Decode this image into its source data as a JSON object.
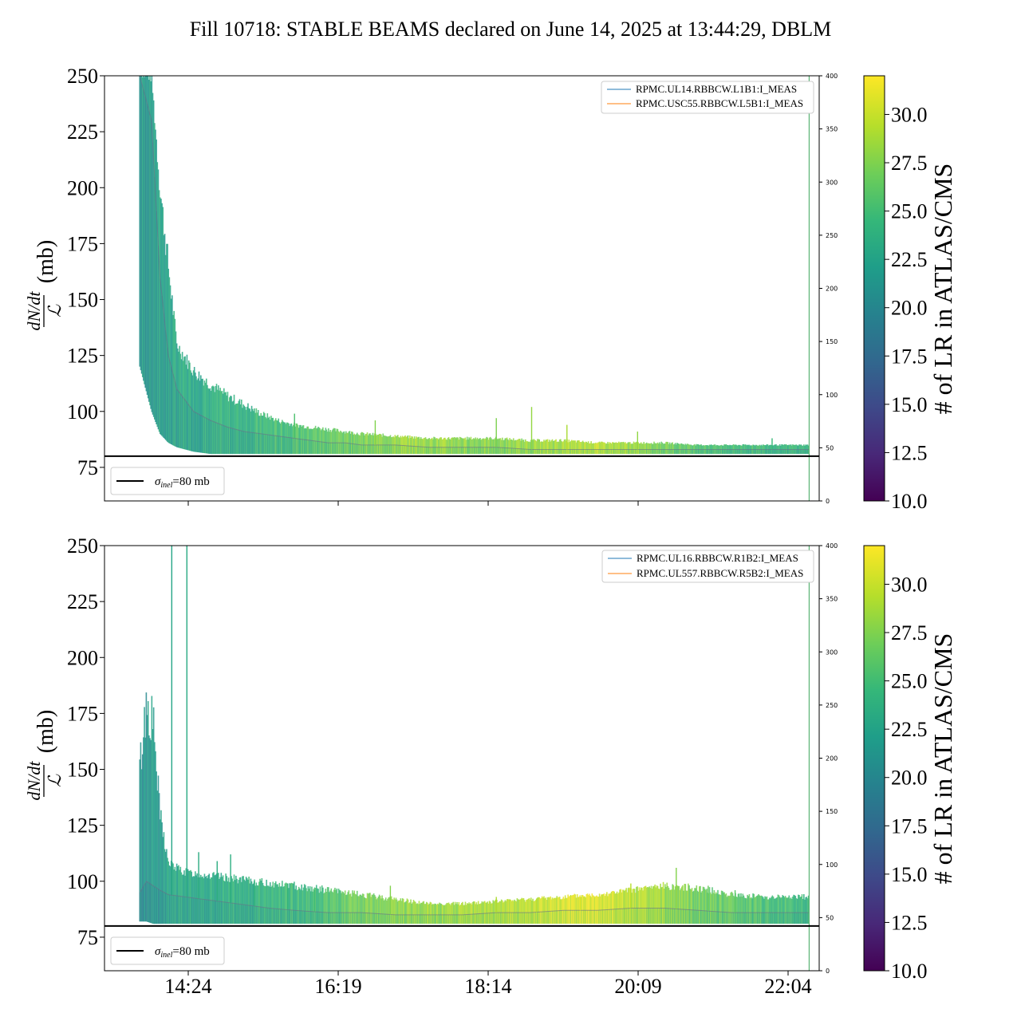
{
  "title": "Fill 10718: STABLE BEAMS declared on June 14, 2025 at 13:44:29, DBLM",
  "colors": {
    "reference_line": "#000000",
    "legend_series_1": "#1f77b4",
    "legend_series_2": "#ff7f0e",
    "viridis": [
      "#440154",
      "#482878",
      "#3e4989",
      "#31688e",
      "#26828e",
      "#1f9e89",
      "#35b779",
      "#6ece58",
      "#b5de2b",
      "#fde725"
    ]
  },
  "chart_data": [
    {
      "type": "line",
      "panel": "top",
      "title": "",
      "xlabel": "",
      "ylabel": "dN/dt / ℒ (mb)",
      "ylabel_fraction_numerator": "dN/dt",
      "ylabel_fraction_denominator": "ℒ",
      "ylabel_unit": "(mb)",
      "ylim": [
        60,
        250
      ],
      "y_ticks": [
        "75",
        "100",
        "125",
        "150",
        "175",
        "200",
        "225",
        "250"
      ],
      "y_tick_values": [
        75,
        100,
        125,
        150,
        175,
        200,
        225,
        250
      ],
      "secondary_ylim": [
        0,
        400
      ],
      "secondary_y_ticks": [
        "0",
        "50",
        "100",
        "150",
        "200",
        "250",
        "300",
        "350",
        "400"
      ],
      "secondary_y_tick_values": [
        0,
        50,
        100,
        150,
        200,
        250,
        300,
        350,
        400
      ],
      "x_axis_unit": "minutes after 13:00",
      "xlim": [
        -13,
        412
      ],
      "x_ticks_shown": false,
      "x_tick_values": [
        84,
        179,
        274,
        369
      ],
      "grid": false,
      "legend_position": "top-right",
      "legend": [
        "RPMC.UL14.RBBCW.L1B1:I_MEAS",
        "RPMC.USC55.RBBCW.L5B1:I_MEAS"
      ],
      "reference_line": {
        "y": 80,
        "label": "σinel=80 mb",
        "label_main": "σ",
        "label_sub": "inel",
        "label_rest": "=80 mb"
      },
      "vertical_marker_x": 406,
      "series": [
        {
          "name": "envelope-upper",
          "x": [
            8,
            15,
            20,
            25,
            30,
            40,
            50,
            60,
            70,
            80,
            90,
            100,
            110,
            120,
            130,
            140,
            160,
            180,
            200,
            220,
            240,
            260,
            280,
            300,
            320,
            340,
            360,
            380,
            400,
            406
          ],
          "y": [
            250,
            250,
            200,
            165,
            130,
            118,
            112,
            107,
            103,
            99,
            96,
            94,
            93,
            92,
            91,
            90,
            89,
            88,
            88,
            88,
            87,
            87,
            86,
            86,
            86,
            85,
            85,
            85,
            85,
            85
          ]
        },
        {
          "name": "median",
          "x": [
            8,
            15,
            20,
            25,
            30,
            40,
            50,
            60,
            70,
            80,
            90,
            100,
            110,
            120,
            130,
            140,
            160,
            180,
            200,
            220,
            240,
            260,
            280,
            300,
            320,
            340,
            360,
            380,
            400,
            406
          ],
          "y": [
            250,
            230,
            160,
            125,
            110,
            100,
            96,
            93,
            91,
            90,
            89,
            88,
            87,
            86,
            86,
            85,
            85,
            84,
            84,
            84,
            83,
            83,
            83,
            83,
            83,
            83,
            83,
            83,
            83,
            83
          ]
        },
        {
          "name": "envelope-lower",
          "x": [
            8,
            15,
            20,
            25,
            30,
            40,
            50,
            60,
            70,
            80,
            90,
            100,
            110,
            120,
            130,
            140,
            160,
            180,
            200,
            220,
            240,
            260,
            280,
            300,
            320,
            340,
            360,
            380,
            400,
            406
          ],
          "y": [
            120,
            100,
            90,
            86,
            84,
            82,
            81,
            81,
            81,
            81,
            81,
            81,
            81,
            81,
            81,
            81,
            81,
            81,
            81,
            81,
            81,
            81,
            81,
            81,
            81,
            81,
            81,
            81,
            81,
            81
          ]
        }
      ],
      "spikes": [
        [
          100,
          99
        ],
        [
          148,
          96
        ],
        [
          220,
          97
        ],
        [
          241,
          102
        ],
        [
          262,
          94
        ],
        [
          304,
          91
        ],
        [
          384,
          88
        ]
      ],
      "band_color_steps": [
        [
          8,
          0.55
        ],
        [
          35,
          0.6
        ],
        [
          75,
          0.65
        ],
        [
          120,
          0.75
        ],
        [
          170,
          0.85
        ],
        [
          220,
          0.8
        ],
        [
          280,
          0.9
        ],
        [
          350,
          0.7
        ],
        [
          406,
          0.65
        ]
      ]
    },
    {
      "type": "line",
      "panel": "bottom",
      "title": "",
      "xlabel": "",
      "ylabel": "dN/dt / ℒ (mb)",
      "ylabel_fraction_numerator": "dN/dt",
      "ylabel_fraction_denominator": "ℒ",
      "ylabel_unit": "(mb)",
      "ylim": [
        60,
        250
      ],
      "y_ticks": [
        "75",
        "100",
        "125",
        "150",
        "175",
        "200",
        "225",
        "250"
      ],
      "y_tick_values": [
        75,
        100,
        125,
        150,
        175,
        200,
        225,
        250
      ],
      "secondary_ylim": [
        0,
        400
      ],
      "secondary_y_ticks": [
        "0",
        "50",
        "100",
        "150",
        "200",
        "250",
        "300",
        "350",
        "400"
      ],
      "secondary_y_tick_values": [
        0,
        50,
        100,
        150,
        200,
        250,
        300,
        350,
        400
      ],
      "x_axis_unit": "minutes after 13:00",
      "xlim": [
        -13,
        412
      ],
      "x_ticks": [
        "14:24",
        "16:19",
        "18:14",
        "20:09",
        "22:04"
      ],
      "x_tick_values": [
        84,
        199,
        314,
        429,
        544
      ],
      "grid": false,
      "legend_position": "top-right",
      "legend": [
        "RPMC.UL16.RBBCW.R1B2:I_MEAS",
        "RPMC.UL557.RBBCW.R5B2:I_MEAS"
      ],
      "reference_line": {
        "y": 80,
        "label": "σinel=80 mb",
        "label_main": "σ",
        "label_sub": "inel",
        "label_rest": "=80 mb"
      },
      "vertical_marker_x": 406,
      "series": [
        {
          "name": "envelope-upper",
          "x": [
            8,
            12,
            16,
            20,
            25,
            35,
            45,
            55,
            65,
            75,
            85,
            100,
            120,
            140,
            160,
            180,
            200,
            220,
            240,
            260,
            280,
            300,
            320,
            340,
            360,
            380,
            400,
            406
          ],
          "y": [
            150,
            180,
            170,
            130,
            108,
            104,
            103,
            102,
            101,
            100,
            99,
            98,
            96,
            94,
            92,
            90,
            90,
            91,
            92,
            93,
            94,
            96,
            98,
            97,
            94,
            93,
            93,
            93
          ]
        },
        {
          "name": "median",
          "x": [
            8,
            12,
            16,
            20,
            25,
            35,
            45,
            55,
            65,
            75,
            85,
            100,
            120,
            140,
            160,
            180,
            200,
            220,
            240,
            260,
            280,
            300,
            320,
            340,
            360,
            380,
            400,
            406
          ],
          "y": [
            95,
            100,
            98,
            96,
            94,
            93,
            92,
            91,
            90,
            89,
            88,
            87,
            86,
            86,
            85,
            85,
            85,
            86,
            86,
            87,
            87,
            88,
            88,
            87,
            86,
            86,
            86,
            86
          ]
        },
        {
          "name": "envelope-lower",
          "x": [
            8,
            12,
            16,
            20,
            25,
            35,
            45,
            55,
            65,
            75,
            85,
            100,
            120,
            140,
            160,
            180,
            200,
            220,
            240,
            260,
            280,
            300,
            320,
            340,
            360,
            380,
            400,
            406
          ],
          "y": [
            82,
            82,
            81,
            81,
            81,
            81,
            81,
            81,
            81,
            81,
            81,
            81,
            81,
            81,
            81,
            81,
            81,
            81,
            81,
            81,
            81,
            81,
            81,
            81,
            81,
            81,
            81,
            81
          ]
        }
      ],
      "spikes": [
        [
          27,
          250
        ],
        [
          36,
          250
        ],
        [
          43,
          113
        ],
        [
          54,
          109
        ],
        [
          62,
          112
        ],
        [
          76,
          100
        ],
        [
          96,
          99
        ],
        [
          112,
          96
        ],
        [
          157,
          98
        ],
        [
          220,
          93
        ],
        [
          244,
          92
        ],
        [
          270,
          93
        ],
        [
          300,
          99
        ],
        [
          327,
          106
        ],
        [
          346,
          98
        ],
        [
          362,
          96
        ]
      ],
      "band_color_steps": [
        [
          8,
          0.5
        ],
        [
          30,
          0.6
        ],
        [
          60,
          0.62
        ],
        [
          100,
          0.65
        ],
        [
          150,
          0.8
        ],
        [
          200,
          0.85
        ],
        [
          240,
          0.9
        ],
        [
          280,
          0.95
        ],
        [
          330,
          0.8
        ],
        [
          406,
          0.65
        ]
      ]
    }
  ],
  "colorbars": [
    {
      "label": "# of LR in ATLAS/CMS",
      "range": [
        10,
        32
      ],
      "ticks": [
        "10.0",
        "12.5",
        "15.0",
        "17.5",
        "20.0",
        "22.5",
        "25.0",
        "27.5",
        "30.0"
      ],
      "tick_values": [
        10,
        12.5,
        15,
        17.5,
        20,
        22.5,
        25,
        27.5,
        30
      ]
    },
    {
      "label": "# of LR in ATLAS/CMS",
      "range": [
        10,
        32
      ],
      "ticks": [
        "10.0",
        "12.5",
        "15.0",
        "17.5",
        "20.0",
        "22.5",
        "25.0",
        "27.5",
        "30.0"
      ],
      "tick_values": [
        10,
        12.5,
        15,
        17.5,
        20,
        22.5,
        25,
        27.5,
        30
      ]
    }
  ]
}
